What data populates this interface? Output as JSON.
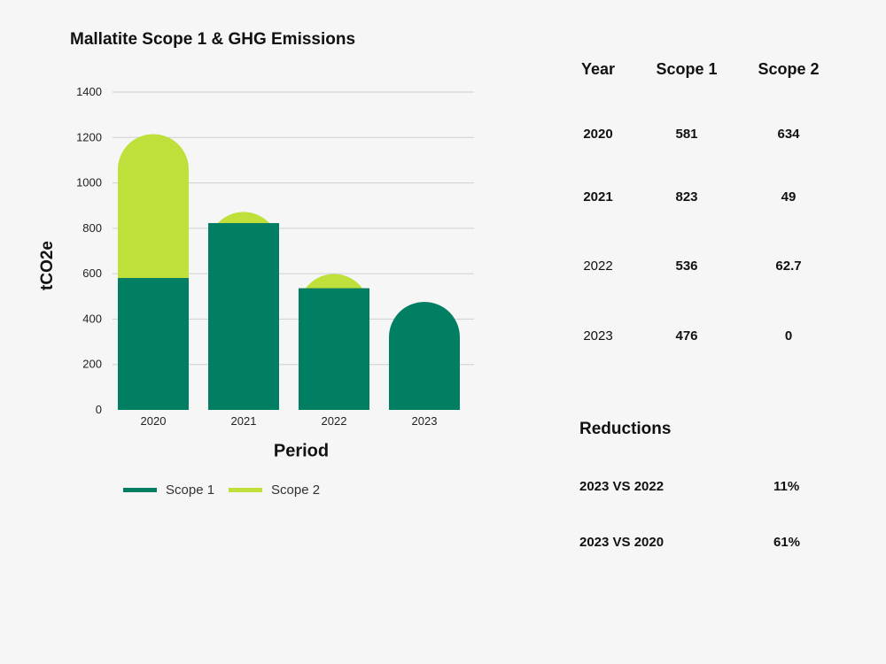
{
  "chart_data": {
    "type": "bar",
    "stacked": true,
    "title": "Mallatite Scope 1 & GHG Emissions",
    "xlabel": "Period",
    "ylabel": "tCO2e",
    "categories": [
      "2020",
      "2021",
      "2022",
      "2023"
    ],
    "series": [
      {
        "name": "Scope 1",
        "values": [
          581,
          823,
          536,
          476
        ]
      },
      {
        "name": "Scope 2",
        "values": [
          634,
          49,
          62.7,
          0
        ]
      }
    ],
    "ylim": [
      0,
      1400
    ],
    "yticks": [
      0,
      200,
      400,
      600,
      800,
      1000,
      1200,
      1400
    ],
    "grid": true,
    "legend": "bottom",
    "colors": {
      "scope1": "#007f62",
      "scope2": "#bfe03b"
    }
  },
  "table": {
    "headers": [
      "Year",
      "Scope 1",
      "Scope 2"
    ],
    "rows": [
      [
        "2020",
        "581",
        "634"
      ],
      [
        "2021",
        "823",
        "49"
      ],
      [
        "2022",
        "536",
        "62.7"
      ],
      [
        "2023",
        "476",
        "0"
      ]
    ]
  },
  "reductions": {
    "title": "Reductions",
    "rows": [
      {
        "label": "2023 VS 2022",
        "value": "11%"
      },
      {
        "label": "2023 VS 2020",
        "value": "61%"
      }
    ]
  }
}
